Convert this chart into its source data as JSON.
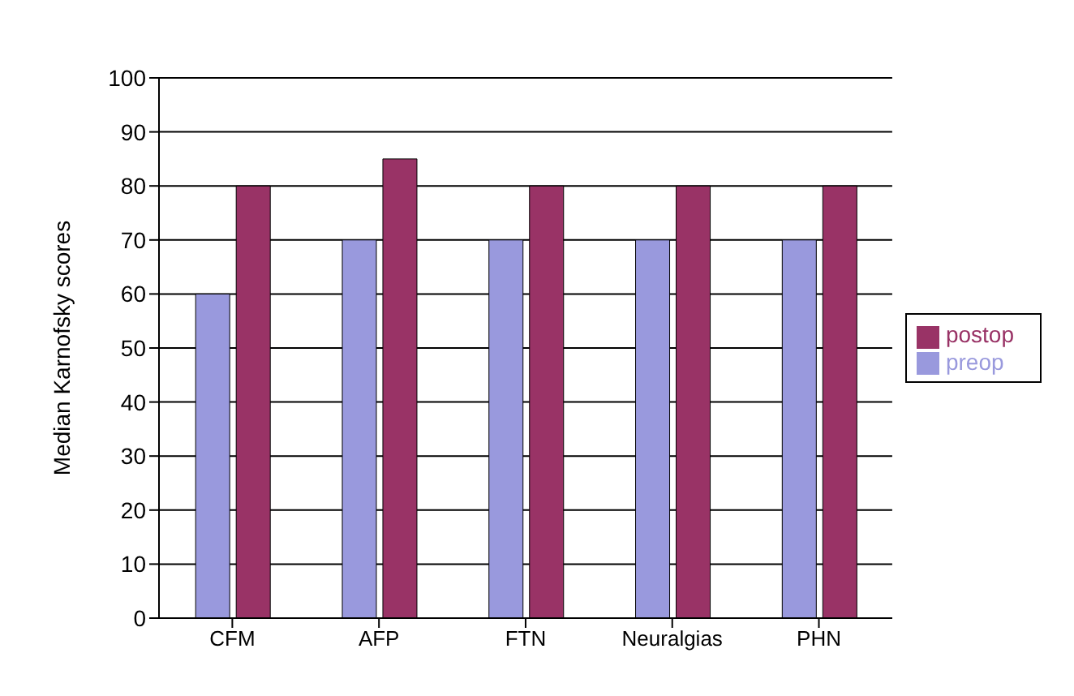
{
  "chart_data": {
    "type": "bar",
    "ylabel": "Median Karnofsky scores",
    "categories": [
      "CFM",
      "AFP",
      "FTN",
      "Neuralgias",
      "PHN"
    ],
    "series": [
      {
        "name": "preop",
        "color": "#9999dd",
        "values": [
          60,
          70,
          70,
          70,
          70
        ]
      },
      {
        "name": "postop",
        "color": "#993366",
        "values": [
          80,
          85,
          80,
          80,
          80
        ]
      }
    ],
    "ylim": [
      0,
      100
    ],
    "yticks": [
      0,
      10,
      20,
      30,
      40,
      50,
      60,
      70,
      80,
      90,
      100
    ],
    "grid": "y",
    "legend": "right"
  }
}
